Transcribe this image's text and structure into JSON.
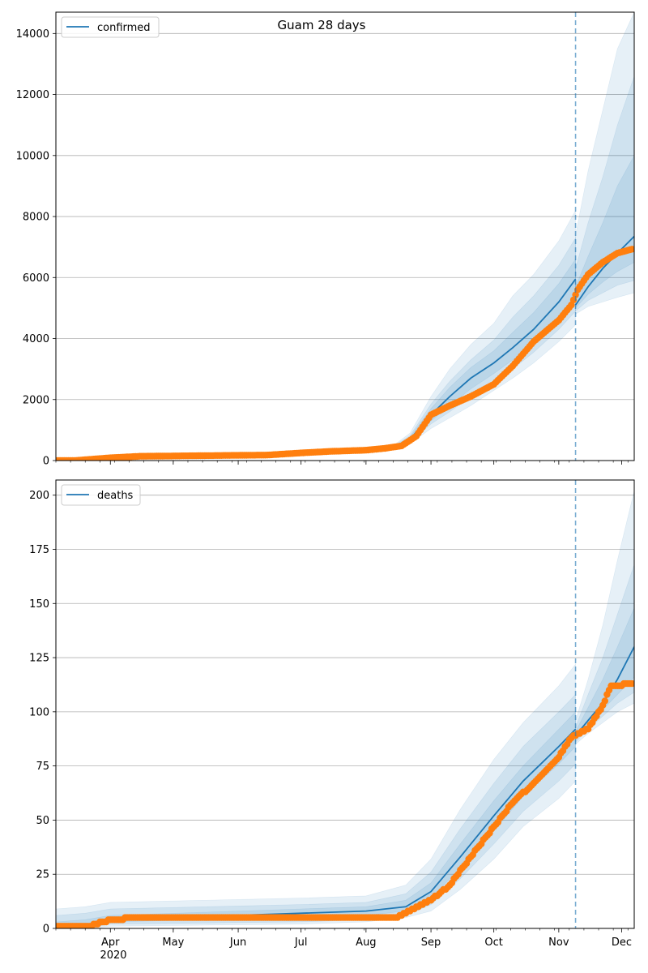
{
  "chart_data": [
    {
      "type": "line",
      "title": "Guam 28 days",
      "legend": {
        "label": "confirmed",
        "placement": "top-left"
      },
      "grid": "horizontal",
      "ylim": [
        0,
        14700
      ],
      "yticks": [
        0,
        2000,
        4000,
        6000,
        8000,
        10000,
        12000,
        14000
      ],
      "xlim": [
        "2020-03-06",
        "2020-12-07"
      ],
      "xticks": [
        {
          "date": "2020-04-01",
          "label": "Apr"
        },
        {
          "date": "2020-05-01",
          "label": "May"
        },
        {
          "date": "2020-06-01",
          "label": "Jun"
        },
        {
          "date": "2020-07-01",
          "label": "Jul"
        },
        {
          "date": "2020-08-01",
          "label": "Aug"
        },
        {
          "date": "2020-09-01",
          "label": "Sep"
        },
        {
          "date": "2020-10-01",
          "label": "Oct"
        },
        {
          "date": "2020-11-01",
          "label": "Nov"
        },
        {
          "date": "2020-12-01",
          "label": "Dec"
        }
      ],
      "vline_date": "2020-11-09",
      "colors": {
        "model": "#1f77b4",
        "observed": "#ff7f0e",
        "band": "#1f77b4"
      },
      "model_fit": {
        "x": [
          "2020-03-06",
          "2020-04-01",
          "2020-06-01",
          "2020-07-01",
          "2020-08-01",
          "2020-08-15",
          "2020-08-22",
          "2020-09-01",
          "2020-09-10",
          "2020-09-20",
          "2020-10-01",
          "2020-10-10",
          "2020-10-20",
          "2020-11-01",
          "2020-11-09"
        ],
        "y": [
          0,
          60,
          150,
          250,
          350,
          450,
          700,
          1500,
          2100,
          2700,
          3200,
          3700,
          4300,
          5200,
          5950
        ],
        "bands": [
          {
            "lower": [
              0,
              40,
              120,
              200,
              280,
              380,
              550,
              1050,
              1400,
              1800,
              2300,
              2700,
              3200,
              3900,
              4450
            ],
            "upper": [
              0,
              80,
              180,
              300,
              420,
              540,
              900,
              2100,
              3000,
              3800,
              4500,
              5400,
              6100,
              7200,
              8200
            ]
          },
          {
            "lower": [
              0,
              45,
              130,
              215,
              300,
              400,
              600,
              1200,
              1600,
              2100,
              2600,
              3000,
              3550,
              4300,
              4900
            ],
            "upper": [
              0,
              75,
              170,
              285,
              400,
              510,
              820,
              1850,
              2600,
              3300,
              3950,
              4700,
              5400,
              6400,
              7300
            ]
          },
          {
            "lower": [
              0,
              50,
              135,
              225,
              315,
              420,
              640,
              1300,
              1800,
              2350,
              2850,
              3300,
              3850,
              4650,
              5300
            ],
            "upper": [
              0,
              70,
              165,
              275,
              385,
              490,
              770,
              1700,
              2400,
              3050,
              3600,
              4200,
              4850,
              5800,
              6600
            ]
          }
        ]
      },
      "forecast": {
        "x": [
          "2020-11-09",
          "2020-11-15",
          "2020-11-22",
          "2020-11-29",
          "2020-12-07"
        ],
        "y": [
          5100,
          5700,
          6300,
          6800,
          7350
        ],
        "bands": [
          {
            "lower": [
              4800,
              5050,
              5200,
              5350,
              5500
            ],
            "upper": [
              7400,
              9500,
              11500,
              13500,
              14700
            ]
          },
          {
            "lower": [
              4900,
              5250,
              5500,
              5750,
              5900
            ],
            "upper": [
              6300,
              7800,
              9300,
              11000,
              12600
            ]
          },
          {
            "lower": [
              5000,
              5450,
              5850,
              6200,
              6500
            ],
            "upper": [
              5700,
              6700,
              7800,
              9000,
              10000
            ]
          }
        ]
      },
      "observed": {
        "x": [
          "2020-03-15",
          "2020-04-01",
          "2020-04-15",
          "2020-05-15",
          "2020-06-15",
          "2020-07-01",
          "2020-07-15",
          "2020-08-01",
          "2020-08-10",
          "2020-08-18",
          "2020-08-25",
          "2020-09-01",
          "2020-09-10",
          "2020-09-20",
          "2020-10-01",
          "2020-10-10",
          "2020-10-20",
          "2020-11-01",
          "2020-11-07",
          "2020-11-10",
          "2020-11-15",
          "2020-11-22",
          "2020-11-29",
          "2020-12-07"
        ],
        "y": [
          0,
          90,
          140,
          160,
          180,
          250,
          300,
          340,
          400,
          480,
          800,
          1500,
          1800,
          2100,
          2500,
          3100,
          3900,
          4600,
          5100,
          5600,
          6100,
          6500,
          6800,
          6950
        ]
      }
    },
    {
      "type": "line",
      "legend": {
        "label": "deaths",
        "placement": "top-left"
      },
      "grid": "horizontal",
      "ylim": [
        0,
        207
      ],
      "yticks": [
        0,
        25,
        50,
        75,
        100,
        125,
        150,
        175,
        200
      ],
      "xlim": [
        "2020-03-06",
        "2020-12-07"
      ],
      "year_label": "2020",
      "xticks": [
        {
          "date": "2020-04-01",
          "label": "Apr"
        },
        {
          "date": "2020-05-01",
          "label": "May"
        },
        {
          "date": "2020-06-01",
          "label": "Jun"
        },
        {
          "date": "2020-07-01",
          "label": "Jul"
        },
        {
          "date": "2020-08-01",
          "label": "Aug"
        },
        {
          "date": "2020-09-01",
          "label": "Sep"
        },
        {
          "date": "2020-10-01",
          "label": "Oct"
        },
        {
          "date": "2020-11-01",
          "label": "Nov"
        },
        {
          "date": "2020-12-01",
          "label": "Dec"
        }
      ],
      "vline_date": "2020-11-09",
      "colors": {
        "model": "#1f77b4",
        "observed": "#ff7f0e",
        "band": "#1f77b4"
      },
      "model_fit": {
        "x": [
          "2020-03-06",
          "2020-03-20",
          "2020-04-01",
          "2020-07-01",
          "2020-08-01",
          "2020-08-20",
          "2020-09-01",
          "2020-09-15",
          "2020-10-01",
          "2020-10-15",
          "2020-11-01",
          "2020-11-09"
        ],
        "y": [
          0,
          1,
          4,
          7,
          8,
          10,
          17,
          33,
          52,
          68,
          84,
          92
        ],
        "bands": [
          {
            "lower": [
              0,
              0,
              1,
              2,
              3,
              5,
              8,
              18,
              32,
              47,
              60,
              68
            ],
            "upper": [
              9,
              10,
              12,
              14,
              15,
              20,
              32,
              55,
              78,
              95,
              112,
              122
            ]
          },
          {
            "lower": [
              0,
              0,
              2,
              3,
              4,
              6,
              11,
              23,
              39,
              54,
              68,
              76
            ],
            "upper": [
              6,
              7,
              9,
              11,
              12,
              16,
              26,
              46,
              67,
              84,
              100,
              108
            ]
          },
          {
            "lower": [
              0,
              0,
              3,
              5,
              6,
              8,
              14,
              28,
              45,
              61,
              76,
              84
            ],
            "upper": [
              3,
              4,
              6,
              9,
              10,
              13,
              21,
              39,
              59,
              75,
              92,
              100
            ]
          }
        ]
      },
      "forecast": {
        "x": [
          "2020-11-09",
          "2020-11-15",
          "2020-11-22",
          "2020-11-29",
          "2020-12-07"
        ],
        "y": [
          89,
          96,
          104,
          115,
          130
        ],
        "bands": [
          {
            "lower": [
              85,
              90,
              95,
              100,
              104
            ],
            "upper": [
              96,
              115,
              140,
              170,
              202
            ]
          },
          {
            "lower": [
              86,
              92,
              98,
              104,
              109
            ],
            "upper": [
              93,
              108,
              125,
              145,
              168
            ]
          },
          {
            "lower": [
              87,
              94,
              101,
              108,
              116
            ],
            "upper": [
              91,
              102,
              115,
              130,
              148
            ]
          }
        ]
      },
      "observed": {
        "x": [
          "2020-03-06",
          "2020-03-22",
          "2020-04-01",
          "2020-04-15",
          "2020-05-01",
          "2020-08-15",
          "2020-08-20",
          "2020-08-25",
          "2020-09-01",
          "2020-09-10",
          "2020-09-20",
          "2020-10-01",
          "2020-10-10",
          "2020-10-20",
          "2020-11-01",
          "2020-11-07",
          "2020-11-15",
          "2020-11-22",
          "2020-11-26",
          "2020-12-07"
        ],
        "y": [
          1,
          1,
          4,
          5,
          5,
          5,
          7,
          10,
          13,
          20,
          33,
          47,
          58,
          67,
          79,
          88,
          92,
          103,
          112,
          113
        ]
      }
    }
  ]
}
